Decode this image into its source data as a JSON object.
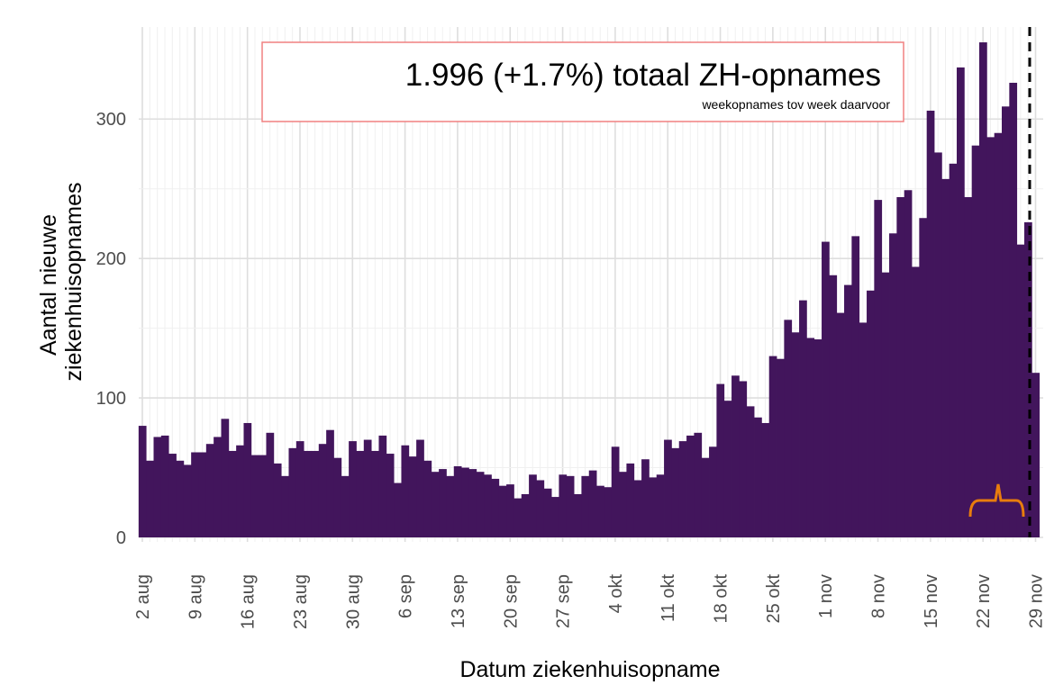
{
  "chart_data": {
    "type": "bar",
    "annotation": "1.996 (+1.7%) totaal ZH-opnames",
    "annotation_subtitle": "weekopnames tov week daarvoor",
    "xlabel": "Datum ziekenhuisopname",
    "ylabel": [
      "Aantal nieuwe",
      "ziekenhuisopnames"
    ],
    "categories": [
      "2 aug",
      null,
      null,
      null,
      null,
      null,
      null,
      "9 aug",
      null,
      null,
      null,
      null,
      null,
      null,
      "16 aug",
      null,
      null,
      null,
      null,
      null,
      null,
      "23 aug",
      null,
      null,
      null,
      null,
      null,
      null,
      "30 aug",
      null,
      null,
      null,
      null,
      null,
      null,
      "6 sep",
      null,
      null,
      null,
      null,
      null,
      null,
      "13 sep",
      null,
      null,
      null,
      null,
      null,
      null,
      "20 sep",
      null,
      null,
      null,
      null,
      null,
      null,
      "27 sep",
      null,
      null,
      null,
      null,
      null,
      null,
      "4 okt",
      null,
      null,
      null,
      null,
      null,
      null,
      "11 okt",
      null,
      null,
      null,
      null,
      null,
      null,
      "18 okt",
      null,
      null,
      null,
      null,
      null,
      null,
      "25 okt",
      null,
      null,
      null,
      null,
      null,
      null,
      "1 nov",
      null,
      null,
      null,
      null,
      null,
      null,
      "8 nov",
      null,
      null,
      null,
      null,
      null,
      null,
      "15 nov",
      null,
      null,
      null,
      null,
      null,
      null,
      "22 nov",
      null,
      null,
      null,
      null,
      null,
      null,
      "29 nov"
    ],
    "values": [
      80,
      55,
      72,
      73,
      60,
      55,
      52,
      61,
      61,
      67,
      72,
      85,
      62,
      66,
      82,
      59,
      59,
      75,
      53,
      44,
      64,
      69,
      62,
      62,
      67,
      77,
      57,
      44,
      69,
      62,
      70,
      62,
      73,
      60,
      39,
      66,
      58,
      70,
      55,
      47,
      49,
      44,
      51,
      50,
      49,
      47,
      45,
      42,
      37,
      38,
      28,
      31,
      45,
      41,
      35,
      29,
      45,
      44,
      31,
      44,
      48,
      37,
      36,
      65,
      47,
      53,
      41,
      56,
      43,
      45,
      70,
      64,
      69,
      73,
      75,
      57,
      65,
      110,
      98,
      116,
      112,
      94,
      86,
      82,
      130,
      128,
      156,
      147,
      170,
      143,
      142,
      212,
      188,
      161,
      181,
      216,
      154,
      177,
      242,
      190,
      218,
      244,
      249,
      194,
      229,
      306,
      276,
      257,
      268,
      337,
      244,
      281,
      355,
      287,
      290,
      309,
      326,
      210,
      226,
      118
    ],
    "color": "#42155c",
    "ylim": [
      0,
      366
    ],
    "yticks": [
      0,
      100,
      200,
      300
    ],
    "grid": true
  }
}
